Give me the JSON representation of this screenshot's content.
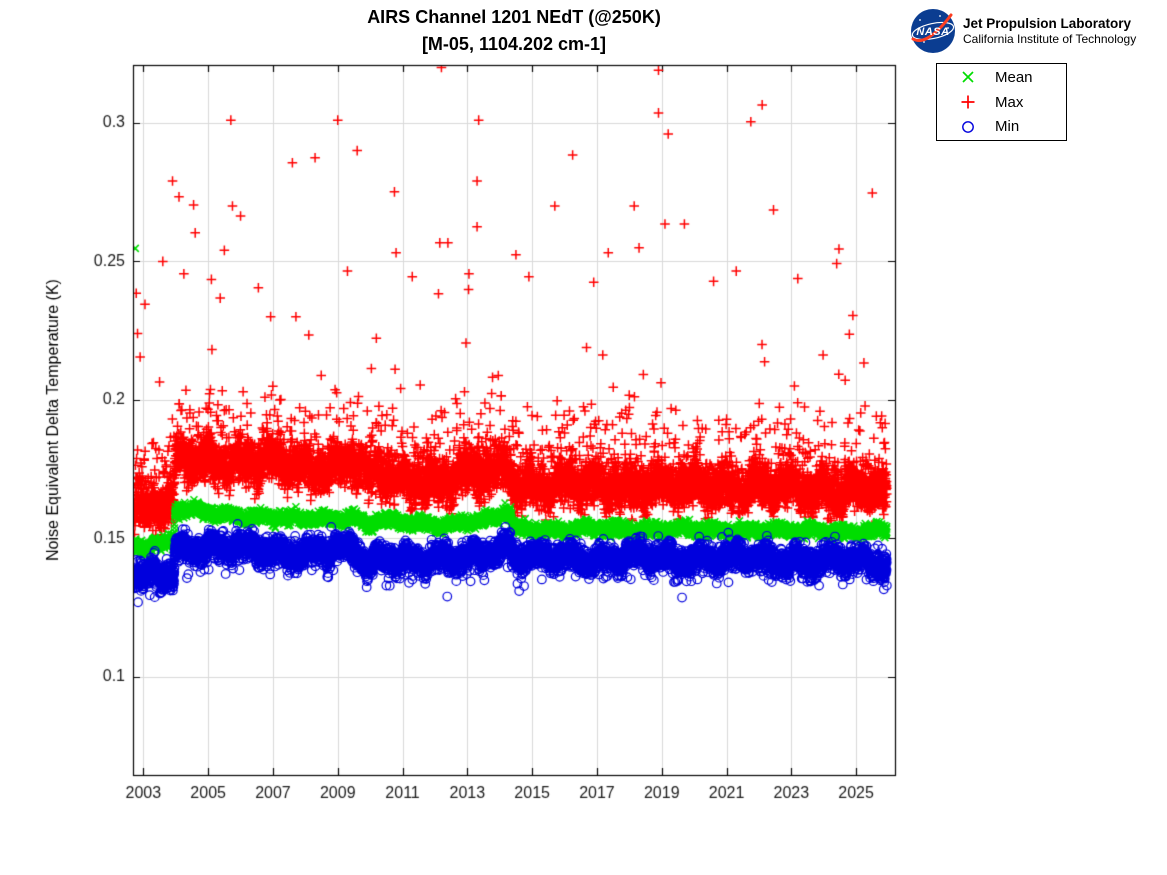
{
  "header": {
    "title_line1": "AIRS Channel 1201 NEdT (@250K)",
    "title_line2": "[M-05, 1104.202 cm-1]"
  },
  "branding": {
    "logo_text": "NASA",
    "org_name": "Jet Propulsion Laboratory",
    "org_sub": "California Institute of Technology",
    "logo_blue": "#0b3d91",
    "logo_red": "#fc3d21"
  },
  "chart_data": {
    "type": "scatter",
    "title": "AIRS Channel 1201 NEdT (@250K)",
    "subtitle": "[M-05, 1104.202 cm-1]",
    "xlabel": "",
    "ylabel": "Noise Equivalent Delta Temperature (K)",
    "xlim": [
      2002.68,
      2026.2
    ],
    "ylim": [
      0.0646,
      0.3209
    ],
    "xticks": [
      2003,
      2005,
      2007,
      2009,
      2011,
      2013,
      2015,
      2017,
      2019,
      2021,
      2023,
      2025
    ],
    "yticks": [
      0.1,
      0.15,
      0.2,
      0.25,
      0.3
    ],
    "grid": true,
    "axis_color": "#000000",
    "grid_color": "#d9d9d9",
    "tick_label_color": "#1a1a1a",
    "legend": {
      "position": "outside-top-right",
      "items": [
        "Mean",
        "Max",
        "Min"
      ]
    },
    "sampling": {
      "start_year": 2002.72,
      "end_year": 2025.95,
      "points_per_year": 365,
      "seed": 77123
    },
    "series": [
      {
        "name": "Mean",
        "marker": "x",
        "color": "#00dd00",
        "sigma": 0.001,
        "seasonal_amp": 0.0007,
        "tail": "none",
        "trend": [
          [
            2002.72,
            0.1478
          ],
          [
            2003.0,
            0.1468
          ],
          [
            2003.3,
            0.1488
          ],
          [
            2003.6,
            0.1478
          ],
          [
            2003.95,
            0.1482
          ],
          [
            2003.97,
            0.1602
          ],
          [
            2004.6,
            0.16
          ],
          [
            2005,
            0.1592
          ],
          [
            2006,
            0.1582
          ],
          [
            2007,
            0.1575
          ],
          [
            2008,
            0.157
          ],
          [
            2009,
            0.1572
          ],
          [
            2009.55,
            0.1578
          ],
          [
            2009.85,
            0.1548
          ],
          [
            2010.2,
            0.1562
          ],
          [
            2011,
            0.1558
          ],
          [
            2012,
            0.1552
          ],
          [
            2013,
            0.1556
          ],
          [
            2013.7,
            0.1565
          ],
          [
            2014.1,
            0.1585
          ],
          [
            2014.32,
            0.1598
          ],
          [
            2014.42,
            0.1537
          ],
          [
            2015,
            0.1535
          ],
          [
            2016,
            0.1532
          ],
          [
            2017,
            0.1534
          ],
          [
            2018,
            0.1535
          ],
          [
            2019,
            0.1532
          ],
          [
            2020,
            0.1529
          ],
          [
            2021,
            0.1531
          ],
          [
            2022,
            0.1529
          ],
          [
            2023,
            0.1527
          ],
          [
            2024,
            0.1527
          ],
          [
            2025.95,
            0.1524
          ]
        ],
        "outliers": [
          [
            2002.75,
            0.2547
          ]
        ]
      },
      {
        "name": "Max",
        "marker": "+",
        "color": "#ff0000",
        "sigma": 0.0035,
        "seasonal_amp": 0.0022,
        "tail": "up",
        "trend": [
          [
            2002.72,
            0.1605
          ],
          [
            2003.0,
            0.159
          ],
          [
            2003.3,
            0.1618
          ],
          [
            2003.6,
            0.16
          ],
          [
            2003.95,
            0.161
          ],
          [
            2003.97,
            0.1768
          ],
          [
            2004.6,
            0.1768
          ],
          [
            2005,
            0.1778
          ],
          [
            2006,
            0.1768
          ],
          [
            2007,
            0.1758
          ],
          [
            2008,
            0.1752
          ],
          [
            2009,
            0.1756
          ],
          [
            2009.55,
            0.1762
          ],
          [
            2009.9,
            0.17
          ],
          [
            2010.3,
            0.1722
          ],
          [
            2011,
            0.171
          ],
          [
            2012,
            0.17
          ],
          [
            2013,
            0.1712
          ],
          [
            2013.7,
            0.1728
          ],
          [
            2014.1,
            0.1752
          ],
          [
            2014.32,
            0.1766
          ],
          [
            2014.42,
            0.169
          ],
          [
            2015,
            0.1687
          ],
          [
            2016,
            0.1683
          ],
          [
            2017,
            0.1684
          ],
          [
            2018,
            0.1686
          ],
          [
            2019,
            0.1681
          ],
          [
            2020,
            0.1678
          ],
          [
            2021,
            0.1679
          ],
          [
            2022,
            0.1675
          ],
          [
            2023,
            0.1672
          ],
          [
            2024,
            0.167
          ],
          [
            2025.95,
            0.1663
          ]
        ],
        "outliers": [
          [
            2002.78,
            0.2385
          ],
          [
            2002.82,
            0.224
          ],
          [
            2002.9,
            0.2155
          ],
          [
            2003.05,
            0.2345
          ],
          [
            2003.5,
            0.2065
          ],
          [
            2003.6,
            0.25
          ],
          [
            2003.9,
            0.279
          ],
          [
            2004.1,
            0.2733
          ],
          [
            2004.25,
            0.2455
          ],
          [
            2004.55,
            0.2704
          ],
          [
            2004.6,
            0.2603
          ],
          [
            2005.1,
            0.2435
          ],
          [
            2005.5,
            0.254
          ],
          [
            2005.7,
            0.301
          ],
          [
            2005.75,
            0.27
          ],
          [
            2006.0,
            0.2664
          ],
          [
            2006.55,
            0.2405
          ],
          [
            2007.6,
            0.2856
          ],
          [
            2008.3,
            0.2874
          ],
          [
            2009.0,
            0.301
          ],
          [
            2009.3,
            0.2465
          ],
          [
            2009.6,
            0.29
          ],
          [
            2010.75,
            0.2751
          ],
          [
            2010.8,
            0.2531
          ],
          [
            2011.3,
            0.2445
          ],
          [
            2012.15,
            0.2567
          ],
          [
            2012.2,
            0.32
          ],
          [
            2012.4,
            0.2567
          ],
          [
            2013.05,
            0.2455
          ],
          [
            2013.3,
            0.279
          ],
          [
            2013.3,
            0.2625
          ],
          [
            2013.35,
            0.301
          ],
          [
            2014.5,
            0.2524
          ],
          [
            2014.9,
            0.2445
          ],
          [
            2015.7,
            0.27
          ],
          [
            2016.25,
            0.2884
          ],
          [
            2016.9,
            0.2425
          ],
          [
            2017.35,
            0.2531
          ],
          [
            2018.15,
            0.27
          ],
          [
            2018.3,
            0.2549
          ],
          [
            2018.9,
            0.319
          ],
          [
            2018.9,
            0.3036
          ],
          [
            2019.1,
            0.2635
          ],
          [
            2019.2,
            0.296
          ],
          [
            2019.7,
            0.2635
          ],
          [
            2020.6,
            0.2428
          ],
          [
            2021.3,
            0.2465
          ],
          [
            2021.75,
            0.3004
          ],
          [
            2022.1,
            0.3065
          ],
          [
            2022.45,
            0.2686
          ],
          [
            2023.2,
            0.2438
          ],
          [
            2024.4,
            0.2492
          ],
          [
            2024.9,
            0.2305
          ],
          [
            2025.5,
            0.2747
          ]
        ]
      },
      {
        "name": "Min",
        "marker": "o",
        "color": "#0000dd",
        "sigma": 0.0022,
        "seasonal_amp": 0.0016,
        "tail": "down",
        "trend": [
          [
            2002.72,
            0.1372
          ],
          [
            2003.0,
            0.1352
          ],
          [
            2003.3,
            0.1378
          ],
          [
            2003.6,
            0.1368
          ],
          [
            2003.95,
            0.1372
          ],
          [
            2003.97,
            0.1472
          ],
          [
            2004.6,
            0.147
          ],
          [
            2005,
            0.1468
          ],
          [
            2006,
            0.1462
          ],
          [
            2007,
            0.146
          ],
          [
            2008,
            0.145
          ],
          [
            2009,
            0.1455
          ],
          [
            2009.55,
            0.1462
          ],
          [
            2009.9,
            0.1402
          ],
          [
            2010.3,
            0.1438
          ],
          [
            2011,
            0.1428
          ],
          [
            2011.6,
            0.1418
          ],
          [
            2012,
            0.1422
          ],
          [
            2012.5,
            0.1412
          ],
          [
            2013,
            0.1438
          ],
          [
            2013.7,
            0.1452
          ],
          [
            2014.1,
            0.1468
          ],
          [
            2014.32,
            0.1488
          ],
          [
            2014.42,
            0.1432
          ],
          [
            2015,
            0.143
          ],
          [
            2016,
            0.1432
          ],
          [
            2017,
            0.1428
          ],
          [
            2018,
            0.1433
          ],
          [
            2019,
            0.1428
          ],
          [
            2020,
            0.143
          ],
          [
            2021,
            0.1428
          ],
          [
            2022,
            0.1426
          ],
          [
            2023,
            0.1422
          ],
          [
            2024,
            0.142
          ],
          [
            2025.95,
            0.1416
          ]
        ],
        "outliers": [
          [
            2003.2,
            0.1295
          ],
          [
            2003.35,
            0.1288
          ],
          [
            2003.5,
            0.1302
          ],
          [
            2006.9,
            0.139
          ],
          [
            2008.2,
            0.1385
          ],
          [
            2010.5,
            0.133
          ],
          [
            2011.2,
            0.134
          ],
          [
            2013.1,
            0.1345
          ],
          [
            2014.6,
            0.131
          ],
          [
            2014.75,
            0.1328
          ],
          [
            2015.3,
            0.1352
          ],
          [
            2017.2,
            0.1355
          ],
          [
            2019.5,
            0.135
          ],
          [
            2020.1,
            0.1352
          ],
          [
            2022.3,
            0.135
          ],
          [
            2023.6,
            0.1348
          ],
          [
            2024.8,
            0.1352
          ]
        ]
      }
    ]
  }
}
